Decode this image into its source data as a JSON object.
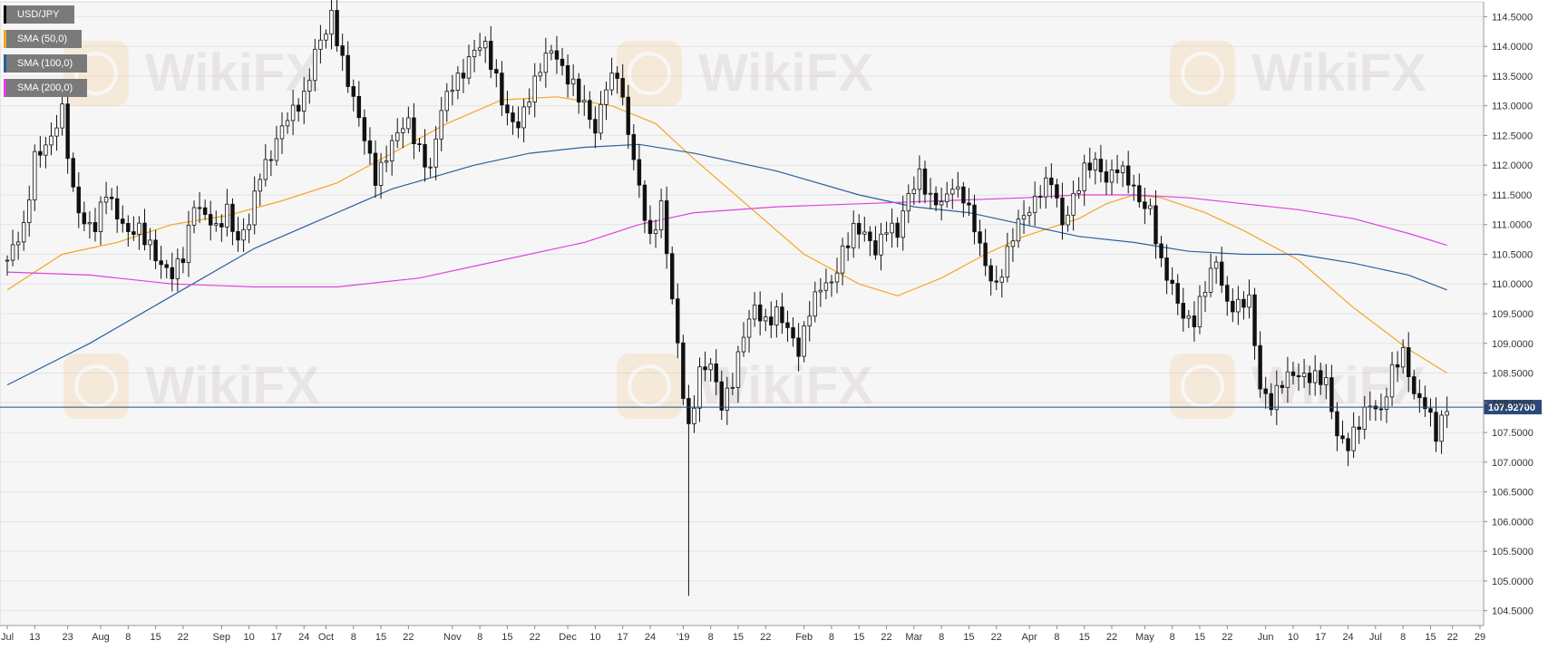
{
  "legend": [
    {
      "label": "USD/JPY",
      "color": "#000000"
    },
    {
      "label": "SMA (50,0)",
      "color": "#f5a623"
    },
    {
      "label": "SMA (100,0)",
      "color": "#2b5f9e"
    },
    {
      "label": "SMA (200,0)",
      "color": "#e040e0"
    }
  ],
  "watermark": "WikiFX",
  "current_price_label": "107.92700",
  "chart_data": {
    "type": "candlestick",
    "symbol": "USD/JPY",
    "ylim": [
      104.25,
      114.75
    ],
    "xlim": [
      0,
      262
    ],
    "yticks": [
      "104.5000",
      "105.0000",
      "105.5000",
      "106.0000",
      "106.5000",
      "107.0000",
      "107.5000",
      "108.0000",
      "108.5000",
      "109.0000",
      "109.5000",
      "110.0000",
      "110.5000",
      "111.0000",
      "111.5000",
      "112.0000",
      "112.5000",
      "113.0000",
      "113.5000",
      "114.0000",
      "114.5000"
    ],
    "xticks": [
      {
        "i": 0,
        "label": "Jul"
      },
      {
        "i": 5,
        "label": "13"
      },
      {
        "i": 11,
        "label": "23"
      },
      {
        "i": 17,
        "label": "Aug"
      },
      {
        "i": 22,
        "label": "8"
      },
      {
        "i": 27,
        "label": "15"
      },
      {
        "i": 32,
        "label": "22"
      },
      {
        "i": 39,
        "label": "Sep"
      },
      {
        "i": 44,
        "label": "10"
      },
      {
        "i": 49,
        "label": "17"
      },
      {
        "i": 54,
        "label": "24"
      },
      {
        "i": 58,
        "label": "Oct"
      },
      {
        "i": 63,
        "label": "8"
      },
      {
        "i": 68,
        "label": "15"
      },
      {
        "i": 73,
        "label": "22"
      },
      {
        "i": 81,
        "label": "Nov"
      },
      {
        "i": 86,
        "label": "8"
      },
      {
        "i": 91,
        "label": "15"
      },
      {
        "i": 96,
        "label": "22"
      },
      {
        "i": 102,
        "label": "Dec"
      },
      {
        "i": 107,
        "label": "10"
      },
      {
        "i": 112,
        "label": "17"
      },
      {
        "i": 117,
        "label": "24"
      },
      {
        "i": 123,
        "label": "'19"
      },
      {
        "i": 128,
        "label": "8"
      },
      {
        "i": 133,
        "label": "15"
      },
      {
        "i": 138,
        "label": "22"
      },
      {
        "i": 145,
        "label": "Feb"
      },
      {
        "i": 150,
        "label": "8"
      },
      {
        "i": 155,
        "label": "15"
      },
      {
        "i": 160,
        "label": "22"
      },
      {
        "i": 165,
        "label": "Mar"
      },
      {
        "i": 170,
        "label": "8"
      },
      {
        "i": 175,
        "label": "15"
      },
      {
        "i": 180,
        "label": "22"
      },
      {
        "i": 186,
        "label": "Apr"
      },
      {
        "i": 191,
        "label": "8"
      },
      {
        "i": 196,
        "label": "15"
      },
      {
        "i": 201,
        "label": "22"
      },
      {
        "i": 207,
        "label": "May"
      },
      {
        "i": 212,
        "label": "8"
      },
      {
        "i": 217,
        "label": "15"
      },
      {
        "i": 222,
        "label": "22"
      },
      {
        "i": 229,
        "label": "Jun"
      },
      {
        "i": 234,
        "label": "10"
      },
      {
        "i": 239,
        "label": "17"
      },
      {
        "i": 244,
        "label": "24"
      },
      {
        "i": 249,
        "label": "Jul"
      },
      {
        "i": 254,
        "label": "8"
      },
      {
        "i": 259,
        "label": "15"
      },
      {
        "i": 263,
        "label": "22"
      },
      {
        "i": 268,
        "label": "29"
      }
    ],
    "series": [
      {
        "name": "SMA (50,0)",
        "color": "#f5a623",
        "points": [
          [
            0,
            109.9
          ],
          [
            10,
            110.5
          ],
          [
            20,
            110.7
          ],
          [
            30,
            111.0
          ],
          [
            40,
            111.15
          ],
          [
            50,
            111.4
          ],
          [
            60,
            111.7
          ],
          [
            70,
            112.2
          ],
          [
            80,
            112.7
          ],
          [
            90,
            113.1
          ],
          [
            100,
            113.15
          ],
          [
            110,
            113.0
          ],
          [
            118,
            112.7
          ],
          [
            125,
            112.1
          ],
          [
            135,
            111.3
          ],
          [
            145,
            110.5
          ],
          [
            155,
            110.0
          ],
          [
            162,
            109.8
          ],
          [
            170,
            110.1
          ],
          [
            178,
            110.5
          ],
          [
            185,
            110.8
          ],
          [
            195,
            111.1
          ],
          [
            200,
            111.35
          ],
          [
            205,
            111.5
          ],
          [
            210,
            111.45
          ],
          [
            218,
            111.2
          ],
          [
            225,
            110.9
          ],
          [
            235,
            110.4
          ],
          [
            245,
            109.6
          ],
          [
            255,
            108.9
          ],
          [
            262,
            108.5
          ]
        ]
      },
      {
        "name": "SMA (100,0)",
        "color": "#2b5f9e",
        "points": [
          [
            0,
            108.3
          ],
          [
            15,
            109.0
          ],
          [
            30,
            109.8
          ],
          [
            45,
            110.6
          ],
          [
            55,
            111.0
          ],
          [
            70,
            111.6
          ],
          [
            85,
            112.0
          ],
          [
            95,
            112.2
          ],
          [
            105,
            112.3
          ],
          [
            115,
            112.35
          ],
          [
            125,
            112.2
          ],
          [
            140,
            111.9
          ],
          [
            155,
            111.5
          ],
          [
            165,
            111.3
          ],
          [
            175,
            111.2
          ],
          [
            185,
            111.0
          ],
          [
            195,
            110.8
          ],
          [
            205,
            110.7
          ],
          [
            215,
            110.55
          ],
          [
            225,
            110.5
          ],
          [
            235,
            110.5
          ],
          [
            245,
            110.35
          ],
          [
            255,
            110.15
          ],
          [
            262,
            109.9
          ]
        ]
      },
      {
        "name": "SMA (200,0)",
        "color": "#e040e0",
        "points": [
          [
            0,
            110.2
          ],
          [
            15,
            110.15
          ],
          [
            30,
            110.0
          ],
          [
            45,
            109.95
          ],
          [
            60,
            109.95
          ],
          [
            75,
            110.1
          ],
          [
            90,
            110.4
          ],
          [
            105,
            110.7
          ],
          [
            115,
            111.0
          ],
          [
            125,
            111.2
          ],
          [
            140,
            111.3
          ],
          [
            155,
            111.35
          ],
          [
            170,
            111.4
          ],
          [
            185,
            111.45
          ],
          [
            195,
            111.5
          ],
          [
            205,
            111.5
          ],
          [
            215,
            111.45
          ],
          [
            225,
            111.35
          ],
          [
            235,
            111.25
          ],
          [
            245,
            111.1
          ],
          [
            255,
            110.85
          ],
          [
            262,
            110.65
          ]
        ]
      }
    ],
    "candles": [],
    "close_path": [
      [
        0,
        110.4
      ],
      [
        3,
        110.9
      ],
      [
        5,
        112.2
      ],
      [
        8,
        112.4
      ],
      [
        10,
        112.9
      ],
      [
        12,
        111.6
      ],
      [
        14,
        111.0
      ],
      [
        16,
        110.9
      ],
      [
        18,
        111.6
      ],
      [
        20,
        111.2
      ],
      [
        22,
        110.8
      ],
      [
        24,
        110.9
      ],
      [
        26,
        110.7
      ],
      [
        28,
        110.3
      ],
      [
        30,
        110.1
      ],
      [
        32,
        110.5
      ],
      [
        34,
        111.4
      ],
      [
        36,
        111.1
      ],
      [
        38,
        110.9
      ],
      [
        40,
        111.3
      ],
      [
        42,
        110.7
      ],
      [
        44,
        111.0
      ],
      [
        46,
        111.9
      ],
      [
        48,
        112.2
      ],
      [
        50,
        112.6
      ],
      [
        52,
        112.9
      ],
      [
        54,
        113.2
      ],
      [
        56,
        113.9
      ],
      [
        58,
        114.2
      ],
      [
        59,
        114.5
      ],
      [
        61,
        113.8
      ],
      [
        63,
        113.1
      ],
      [
        65,
        112.4
      ],
      [
        67,
        111.8
      ],
      [
        69,
        112.2
      ],
      [
        71,
        112.5
      ],
      [
        73,
        112.7
      ],
      [
        75,
        112.3
      ],
      [
        77,
        111.9
      ],
      [
        79,
        112.9
      ],
      [
        81,
        113.4
      ],
      [
        83,
        113.6
      ],
      [
        85,
        113.9
      ],
      [
        87,
        114.0
      ],
      [
        89,
        113.5
      ],
      [
        91,
        112.8
      ],
      [
        93,
        112.6
      ],
      [
        95,
        113.2
      ],
      [
        97,
        113.7
      ],
      [
        99,
        113.9
      ],
      [
        101,
        113.6
      ],
      [
        103,
        113.4
      ],
      [
        105,
        113.0
      ],
      [
        107,
        112.5
      ],
      [
        109,
        113.4
      ],
      [
        111,
        113.6
      ],
      [
        113,
        112.5
      ],
      [
        115,
        111.6
      ],
      [
        117,
        110.8
      ],
      [
        119,
        111.3
      ],
      [
        121,
        109.7
      ],
      [
        123,
        108.2
      ],
      [
        124,
        107.6
      ],
      [
        126,
        108.5
      ],
      [
        128,
        108.6
      ],
      [
        130,
        108.0
      ],
      [
        132,
        108.4
      ],
      [
        134,
        109.1
      ],
      [
        136,
        109.6
      ],
      [
        138,
        109.4
      ],
      [
        140,
        109.5
      ],
      [
        142,
        109.2
      ],
      [
        144,
        108.9
      ],
      [
        146,
        109.6
      ],
      [
        148,
        109.9
      ],
      [
        150,
        110.0
      ],
      [
        152,
        110.6
      ],
      [
        154,
        110.9
      ],
      [
        156,
        110.8
      ],
      [
        158,
        110.6
      ],
      [
        160,
        111.0
      ],
      [
        162,
        110.8
      ],
      [
        164,
        111.5
      ],
      [
        166,
        111.9
      ],
      [
        168,
        111.4
      ],
      [
        170,
        111.3
      ],
      [
        172,
        111.7
      ],
      [
        174,
        111.5
      ],
      [
        176,
        110.9
      ],
      [
        178,
        110.3
      ],
      [
        180,
        110.0
      ],
      [
        182,
        110.5
      ],
      [
        184,
        111.0
      ],
      [
        186,
        111.3
      ],
      [
        188,
        111.6
      ],
      [
        190,
        111.7
      ],
      [
        192,
        111.0
      ],
      [
        194,
        111.5
      ],
      [
        196,
        111.9
      ],
      [
        198,
        112.0
      ],
      [
        200,
        111.8
      ],
      [
        202,
        112.0
      ],
      [
        204,
        111.7
      ],
      [
        206,
        111.4
      ],
      [
        208,
        111.3
      ],
      [
        210,
        110.3
      ],
      [
        212,
        109.9
      ],
      [
        214,
        109.5
      ],
      [
        216,
        109.4
      ],
      [
        218,
        109.9
      ],
      [
        220,
        110.4
      ],
      [
        222,
        109.7
      ],
      [
        224,
        109.6
      ],
      [
        226,
        109.7
      ],
      [
        228,
        108.3
      ],
      [
        230,
        108.0
      ],
      [
        232,
        108.3
      ],
      [
        234,
        108.5
      ],
      [
        236,
        108.5
      ],
      [
        238,
        108.4
      ],
      [
        240,
        108.3
      ],
      [
        242,
        107.5
      ],
      [
        244,
        107.3
      ],
      [
        246,
        107.6
      ],
      [
        248,
        108.0
      ],
      [
        250,
        107.9
      ],
      [
        252,
        108.5
      ],
      [
        254,
        108.8
      ],
      [
        256,
        108.2
      ],
      [
        258,
        108.0
      ],
      [
        260,
        107.4
      ],
      [
        262,
        107.92
      ]
    ]
  }
}
